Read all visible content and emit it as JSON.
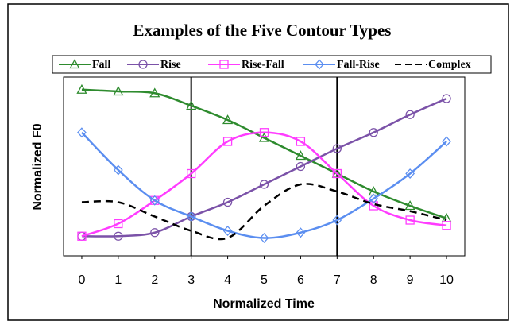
{
  "chart_data": {
    "type": "line",
    "title": "Examples of the Five Contour Types",
    "x_label": "Normalized Time",
    "y_label": "Normalized F0",
    "x": [
      0,
      1,
      2,
      3,
      4,
      5,
      6,
      7,
      8,
      9,
      10
    ],
    "xlim": [
      -0.5,
      10.5
    ],
    "xticks": [
      0,
      1,
      2,
      3,
      4,
      5,
      6,
      7,
      8,
      9,
      10
    ],
    "ylim": [
      0,
      1
    ],
    "vlines": [
      3,
      7
    ],
    "series": [
      {
        "name": "Fall",
        "color": "#2e8b2e",
        "marker": "triangle",
        "style": "solid",
        "values": [
          0.93,
          0.92,
          0.91,
          0.84,
          0.76,
          0.66,
          0.56,
          0.46,
          0.36,
          0.28,
          0.21
        ]
      },
      {
        "name": "Rise",
        "color": "#7b52a8",
        "marker": "circle",
        "style": "solid",
        "values": [
          0.11,
          0.11,
          0.13,
          0.22,
          0.3,
          0.4,
          0.5,
          0.6,
          0.69,
          0.79,
          0.88
        ]
      },
      {
        "name": "Rise-Fall",
        "color": "#ff3cff",
        "marker": "square",
        "style": "solid",
        "values": [
          0.11,
          0.18,
          0.31,
          0.46,
          0.64,
          0.69,
          0.64,
          0.46,
          0.28,
          0.2,
          0.17
        ]
      },
      {
        "name": "Fall-Rise",
        "color": "#5b8ef0",
        "marker": "diamond",
        "style": "solid",
        "values": [
          0.69,
          0.48,
          0.31,
          0.22,
          0.14,
          0.1,
          0.13,
          0.2,
          0.32,
          0.46,
          0.64
        ]
      },
      {
        "name": "Complex",
        "color": "#000000",
        "marker": "none",
        "style": "dashed",
        "values": [
          0.3,
          0.3,
          0.22,
          0.14,
          0.1,
          0.28,
          0.4,
          0.36,
          0.29,
          0.25,
          0.2
        ]
      }
    ]
  }
}
